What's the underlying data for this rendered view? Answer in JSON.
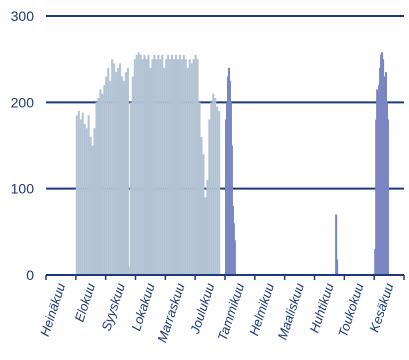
{
  "chart_data": {
    "type": "bar",
    "title": "",
    "xlabel": "",
    "ylabel": "",
    "ylim": [
      0,
      300
    ],
    "yticks": [
      0,
      100,
      200,
      300
    ],
    "grid": true,
    "legend": "none",
    "months": [
      "Heinäkuu",
      "Elokuu",
      "Syyskuu",
      "Lokakuu",
      "Marraskuu",
      "Joulukuu",
      "Tammikuu",
      "Helmikuu",
      "Maaliskuu",
      "Huhtikuu",
      "Toukokuu",
      "Kesäkuu"
    ],
    "series": [
      {
        "color": "#b3c3d4",
        "note_dates": "approximate daily values, Aug 1 - Jan 1",
        "points": [
          [
            0,
            185
          ],
          [
            2,
            190
          ],
          [
            4,
            180
          ],
          [
            6,
            188
          ],
          [
            8,
            175
          ],
          [
            10,
            170
          ],
          [
            12,
            185
          ],
          [
            14,
            160
          ],
          [
            16,
            150
          ],
          [
            18,
            170
          ],
          [
            20,
            200
          ],
          [
            22,
            205
          ],
          [
            24,
            215
          ],
          [
            26,
            210
          ],
          [
            28,
            220
          ],
          [
            30,
            230
          ],
          [
            32,
            240
          ],
          [
            34,
            225
          ],
          [
            36,
            250
          ],
          [
            38,
            245
          ],
          [
            40,
            235
          ],
          [
            42,
            240
          ],
          [
            44,
            245
          ],
          [
            46,
            230
          ],
          [
            48,
            225
          ],
          [
            50,
            235
          ],
          [
            52,
            240
          ],
          [
            53,
            10
          ],
          [
            55,
            200
          ],
          [
            57,
            230
          ],
          [
            59,
            250
          ],
          [
            61,
            255
          ],
          [
            63,
            258
          ],
          [
            65,
            255
          ],
          [
            67,
            250
          ],
          [
            69,
            255
          ],
          [
            71,
            250
          ],
          [
            73,
            255
          ],
          [
            75,
            240
          ],
          [
            77,
            250
          ],
          [
            79,
            255
          ],
          [
            81,
            250
          ],
          [
            83,
            255
          ],
          [
            85,
            250
          ],
          [
            87,
            255
          ],
          [
            89,
            240
          ],
          [
            91,
            250
          ],
          [
            93,
            255
          ],
          [
            95,
            250
          ],
          [
            97,
            255
          ],
          [
            99,
            250
          ],
          [
            101,
            255
          ],
          [
            103,
            250
          ],
          [
            105,
            255
          ],
          [
            107,
            250
          ],
          [
            109,
            255
          ],
          [
            111,
            250
          ],
          [
            113,
            240
          ],
          [
            115,
            250
          ],
          [
            117,
            245
          ],
          [
            119,
            250
          ],
          [
            121,
            255
          ],
          [
            123,
            250
          ],
          [
            125,
            200
          ],
          [
            127,
            160
          ],
          [
            129,
            140
          ],
          [
            131,
            90
          ],
          [
            133,
            110
          ],
          [
            135,
            180
          ],
          [
            137,
            200
          ],
          [
            139,
            210
          ],
          [
            141,
            205
          ],
          [
            143,
            195
          ],
          [
            145,
            190
          ]
        ]
      },
      {
        "color": "#7a86c2",
        "note_dates": "approximate daily values, Jan 1 - Jan 10",
        "points": [
          [
            0,
            180
          ],
          [
            1,
            200
          ],
          [
            2,
            230
          ],
          [
            3,
            240
          ],
          [
            4,
            225
          ],
          [
            5,
            200
          ],
          [
            6,
            150
          ],
          [
            7,
            80
          ],
          [
            8,
            60
          ],
          [
            9,
            40
          ]
        ]
      },
      {
        "color": "#7a86c2",
        "note_dates": "Apr 22 - Apr 23",
        "points": [
          [
            0,
            70
          ],
          [
            1,
            18
          ]
        ]
      },
      {
        "color": "#7a86c2",
        "note_dates": "approximate daily values, Jun 1 - Jun 14",
        "points": [
          [
            0,
            30
          ],
          [
            1,
            180
          ],
          [
            2,
            215
          ],
          [
            3,
            210
          ],
          [
            4,
            220
          ],
          [
            5,
            240
          ],
          [
            6,
            255
          ],
          [
            7,
            258
          ],
          [
            8,
            250
          ],
          [
            9,
            230
          ],
          [
            10,
            220
          ],
          [
            11,
            235
          ],
          [
            12,
            200
          ],
          [
            13,
            180
          ]
        ]
      }
    ]
  }
}
